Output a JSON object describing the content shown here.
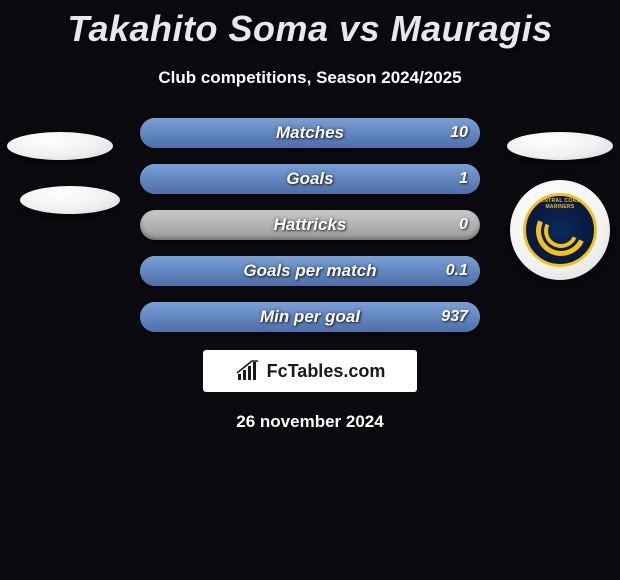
{
  "headline": {
    "title": "Takahito Soma vs Mauragis",
    "subtitle": "Club competitions, Season 2024/2025"
  },
  "colors": {
    "background": "#0a0a0f",
    "bar_base_top": "#c9c9c9",
    "bar_base_bottom": "#9a9a9a",
    "bar_fill_top": "#7aa0d8",
    "bar_fill_bottom": "#4d6ea8",
    "text": "#ffffff",
    "brand_box_bg": "#ffffff",
    "brand_text": "#1a1a1a",
    "logo_ring": "#f2c21a",
    "logo_center": "#0a2a5c"
  },
  "stats": [
    {
      "label": "Matches",
      "right_value": "10",
      "fill_pct": 100
    },
    {
      "label": "Goals",
      "right_value": "1",
      "fill_pct": 100
    },
    {
      "label": "Hattricks",
      "right_value": "0",
      "fill_pct": 0
    },
    {
      "label": "Goals per match",
      "right_value": "0.1",
      "fill_pct": 100
    },
    {
      "label": "Min per goal",
      "right_value": "937",
      "fill_pct": 100
    }
  ],
  "brand": {
    "name": "FcTables.com",
    "icon": "chart-bars"
  },
  "right_badge": {
    "label": "CENTRAL COAST MARINERS"
  },
  "date": "26 november 2024"
}
